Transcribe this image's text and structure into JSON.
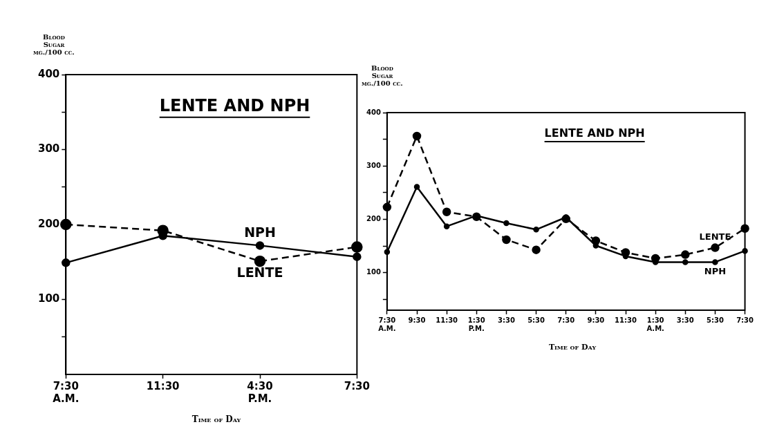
{
  "chart_data": [
    {
      "type": "line",
      "title": "LENTE AND NPH",
      "ylabel": "Blood\nSugar\nmg./100 cc.",
      "xlabel": "Time of Day",
      "categories": [
        "7:30\nA.M.",
        "11:30",
        "4:30\nP.M.",
        "7:30"
      ],
      "series": [
        {
          "name": "NPH",
          "color": "#000000",
          "line_style": "solid",
          "values": [
            149,
            185,
            172,
            157
          ]
        },
        {
          "name": "LENTE",
          "color": "#000000",
          "line_style": "dashed",
          "values": [
            200,
            192,
            151,
            170
          ]
        }
      ],
      "ylim": [
        0,
        400
      ],
      "yticks": [
        {
          "value": 50,
          "label": null
        },
        100,
        {
          "value": 150,
          "label": null
        },
        200,
        {
          "value": 250,
          "label": null
        },
        300,
        {
          "value": 350,
          "label": null
        },
        400
      ],
      "marker": "circle",
      "grid": false,
      "legend": false
    },
    {
      "type": "line",
      "title": "LENTE AND NPH",
      "ylabel": "Blood\nSugar\nmg./100 cc.",
      "xlabel": "Time of Day",
      "categories": [
        "7:30\nA.M.",
        "9:30",
        "11:30",
        "1:30\nP.M.",
        "3:30",
        "5:30",
        "7:30",
        "9:30",
        "11:30",
        "1:30\nA.M.",
        "3:30",
        "5:30",
        "7:30"
      ],
      "series": [
        {
          "name": "NPH",
          "color": "#000000",
          "line_style": "solid",
          "values": [
            139,
            261,
            187,
            207,
            193,
            181,
            204,
            151,
            131,
            120,
            120,
            120,
            141
          ]
        },
        {
          "name": "LENTE",
          "color": "#000000",
          "line_style": "dashed",
          "values": [
            223,
            356,
            214,
            205,
            162,
            143,
            201,
            160,
            138,
            127,
            134,
            147,
            183
          ]
        }
      ],
      "ylim": [
        30,
        400
      ],
      "yticks": [
        {
          "value": 50,
          "label": null
        },
        100,
        {
          "value": 150,
          "label": null
        },
        200,
        {
          "value": 250,
          "label": null
        },
        300,
        {
          "value": 350,
          "label": null
        },
        400
      ],
      "marker": "circle",
      "grid": false,
      "legend": false
    }
  ]
}
